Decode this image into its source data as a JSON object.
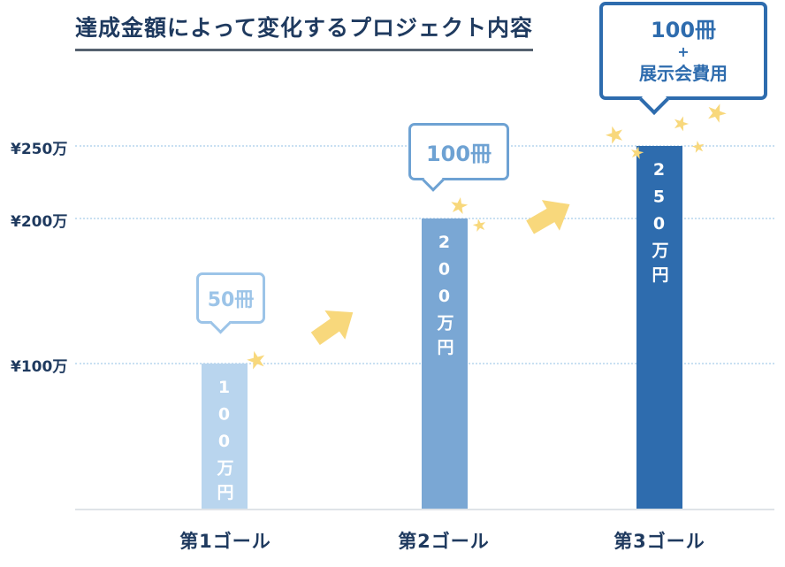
{
  "title": "達成金額によって変化するプロジェクト内容",
  "colors": {
    "bar1": "#b9d5ee",
    "bar2": "#7aa7d4",
    "bar3": "#2e6cae",
    "bubble1": "#9cc4e8",
    "bubble2": "#6ea2d3",
    "bubble3": "#2e6cae",
    "star": "#f8d87c",
    "navy": "#1f3a5f",
    "grid": "#c9e0f2",
    "baseline": "#dfe3e8",
    "underline": "#55616f"
  },
  "icons": {
    "star": "★"
  },
  "chart_data": {
    "type": "bar",
    "title": "達成金額によって変化するプロジェクト内容",
    "categories": [
      "第1ゴール",
      "第2ゴール",
      "第3ゴール"
    ],
    "values": [
      100,
      200,
      250
    ],
    "unit": "万円",
    "bar_labels": [
      "100万円",
      "200万円",
      "250万円"
    ],
    "bubble_labels": [
      [
        "50冊"
      ],
      [
        "100冊"
      ],
      [
        "100冊",
        "+",
        "展示会費用"
      ]
    ],
    "y_ticks": [
      "¥250万",
      "¥200万",
      "¥100万"
    ],
    "tick_values": [
      250,
      200,
      100
    ],
    "ylim": [
      0,
      260
    ],
    "grid": "dotted-horizontal",
    "legend": "none",
    "annotations": [
      "yellow up-right arrows between bars",
      "yellow stars near bar tops"
    ]
  }
}
